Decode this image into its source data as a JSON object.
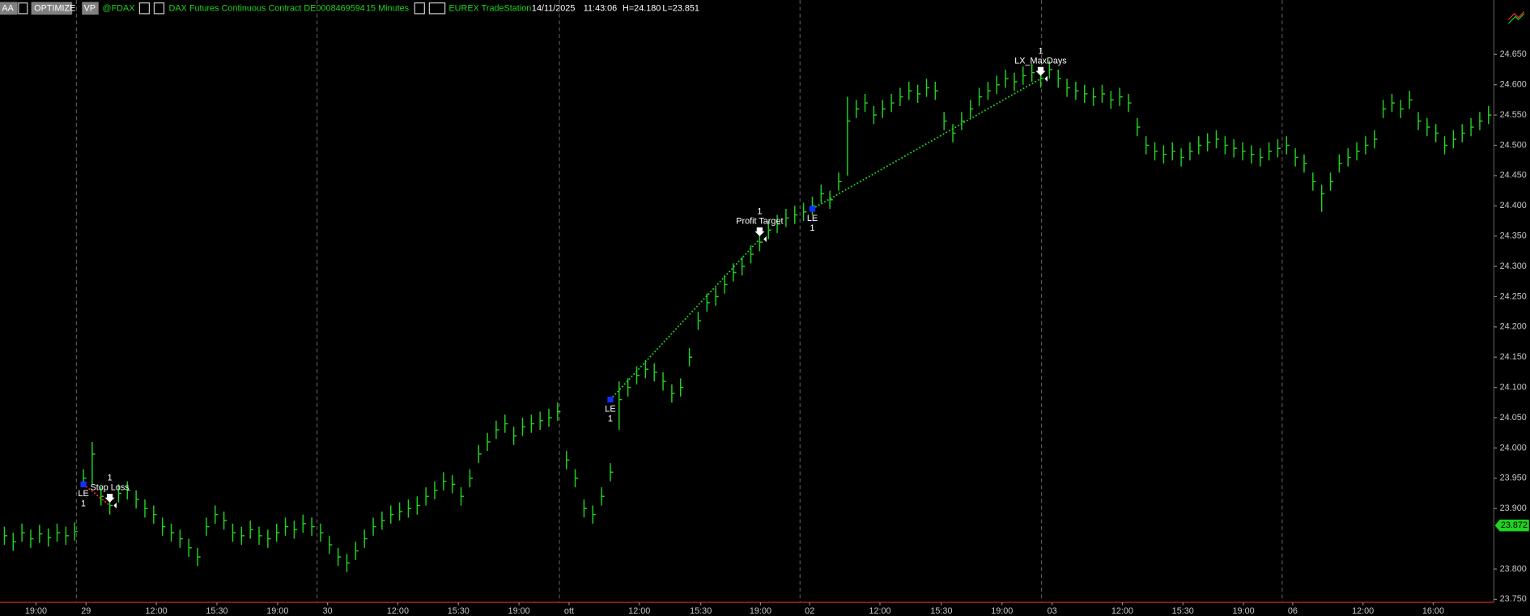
{
  "header": {
    "aa": "AA",
    "optimize": "OPTIMIZE",
    "vp": "VP",
    "symbol": "@FDAX",
    "description": "DAX  Futures Continuous Contract DE0008469594",
    "interval": "15 Minutes",
    "exchange": "EUREX  TradeStation",
    "date": "14/11/2025",
    "time": "11:43:06",
    "high": "H=24.180",
    "low": "L=23.851"
  },
  "chart_data": {
    "type": "ohlc",
    "color": "#1fd31f",
    "close": [
      23855,
      23845,
      23860,
      23850,
      23858,
      23852,
      23860,
      23855,
      23862,
      23950,
      23990,
      23920,
      23905,
      23925,
      23930,
      23915,
      23900,
      23890,
      23870,
      23860,
      23850,
      23835,
      23820,
      23870,
      23890,
      23880,
      23860,
      23855,
      23865,
      23855,
      23850,
      23860,
      23870,
      23865,
      23875,
      23870,
      23860,
      23840,
      23820,
      23810,
      23830,
      23850,
      23870,
      23880,
      23890,
      23895,
      23900,
      23905,
      23920,
      23930,
      23945,
      23940,
      23920,
      23950,
      23990,
      24010,
      24030,
      24040,
      24020,
      24035,
      24040,
      24045,
      24050,
      24060,
      23980,
      23950,
      23900,
      23890,
      23920,
      23960,
      24080,
      24100,
      24120,
      24130,
      24125,
      24110,
      24090,
      24100,
      24150,
      24210,
      24240,
      24250,
      24270,
      24290,
      24300,
      24320,
      24340,
      24360,
      24370,
      24380,
      24385,
      24390,
      24400,
      24420,
      24410,
      24440,
      24540,
      24560,
      24570,
      24550,
      24560,
      24570,
      24580,
      24590,
      24585,
      24595,
      24590,
      24540,
      24520,
      24540,
      24560,
      24580,
      24590,
      24600,
      24610,
      24605,
      24615,
      24620,
      24610,
      24625,
      24610,
      24595,
      24590,
      24585,
      24580,
      24585,
      24575,
      24580,
      24570,
      24530,
      24500,
      24490,
      24485,
      24490,
      24480,
      24490,
      24500,
      24505,
      24510,
      24500,
      24495,
      24490,
      24485,
      24480,
      24490,
      24495,
      24500,
      24480,
      24470,
      24440,
      24420,
      24440,
      24470,
      24480,
      24490,
      24500,
      24510,
      24560,
      24570,
      24560,
      24575,
      24540,
      24530,
      24520,
      24500,
      24510,
      24520,
      24530,
      24540,
      24550
    ],
    "high": [
      23870,
      23860,
      23875,
      23865,
      23873,
      23867,
      23875,
      23870,
      23877,
      23965,
      24010,
      23935,
      23920,
      23940,
      23945,
      23930,
      23915,
      23905,
      23885,
      23875,
      23865,
      23850,
      23835,
      23885,
      23905,
      23895,
      23875,
      23870,
      23880,
      23870,
      23865,
      23875,
      23885,
      23880,
      23890,
      23885,
      23875,
      23855,
      23835,
      23825,
      23845,
      23865,
      23885,
      23895,
      23905,
      23910,
      23915,
      23920,
      23935,
      23945,
      23960,
      23955,
      23935,
      23965,
      24005,
      24025,
      24045,
      24055,
      24035,
      24050,
      24055,
      24060,
      24065,
      24075,
      23995,
      23965,
      23915,
      23905,
      23935,
      23975,
      24110,
      24115,
      24135,
      24145,
      24140,
      24125,
      24105,
      24115,
      24165,
      24225,
      24255,
      24265,
      24285,
      24305,
      24315,
      24335,
      24355,
      24375,
      24385,
      24395,
      24400,
      24405,
      24415,
      24435,
      24425,
      24455,
      24580,
      24575,
      24585,
      24565,
      24575,
      24585,
      24595,
      24605,
      24600,
      24610,
      24605,
      24555,
      24535,
      24555,
      24575,
      24595,
      24605,
      24615,
      24625,
      24620,
      24630,
      24635,
      24625,
      24640,
      24625,
      24610,
      24605,
      24600,
      24595,
      24600,
      24590,
      24595,
      24585,
      24545,
      24515,
      24505,
      24500,
      24505,
      24495,
      24505,
      24515,
      24520,
      24525,
      24515,
      24510,
      24505,
      24500,
      24495,
      24505,
      24510,
      24515,
      24495,
      24485,
      24455,
      24435,
      24455,
      24485,
      24495,
      24505,
      24515,
      24525,
      24575,
      24585,
      24575,
      24590,
      24555,
      24545,
      24535,
      24515,
      24525,
      24535,
      24545,
      24555,
      24565
    ],
    "low": [
      23840,
      23830,
      23845,
      23835,
      23843,
      23837,
      23845,
      23840,
      23847,
      23935,
      23940,
      23905,
      23890,
      23910,
      23915,
      23900,
      23885,
      23875,
      23855,
      23845,
      23835,
      23820,
      23805,
      23855,
      23875,
      23865,
      23845,
      23840,
      23850,
      23840,
      23835,
      23845,
      23855,
      23850,
      23860,
      23855,
      23845,
      23825,
      23805,
      23795,
      23815,
      23835,
      23855,
      23865,
      23875,
      23880,
      23885,
      23890,
      23905,
      23915,
      23930,
      23925,
      23905,
      23935,
      23975,
      23995,
      24015,
      24025,
      24005,
      24020,
      24025,
      24030,
      24035,
      24045,
      23965,
      23935,
      23885,
      23875,
      23905,
      23945,
      24030,
      24085,
      24105,
      24115,
      24110,
      24095,
      24075,
      24085,
      24135,
      24195,
      24225,
      24235,
      24255,
      24275,
      24285,
      24305,
      24325,
      24345,
      24355,
      24365,
      24370,
      24375,
      24385,
      24405,
      24395,
      24425,
      24450,
      24545,
      24555,
      24535,
      24545,
      24555,
      24565,
      24575,
      24570,
      24580,
      24575,
      24525,
      24505,
      24525,
      24545,
      24565,
      24575,
      24585,
      24595,
      24590,
      24600,
      24605,
      24595,
      24610,
      24595,
      24580,
      24575,
      24570,
      24565,
      24570,
      24560,
      24565,
      24555,
      24515,
      24485,
      24475,
      24470,
      24475,
      24465,
      24475,
      24485,
      24490,
      24495,
      24485,
      24480,
      24475,
      24470,
      24465,
      24475,
      24480,
      24485,
      24465,
      24455,
      24425,
      24390,
      24425,
      24455,
      24465,
      24475,
      24485,
      24495,
      24545,
      24555,
      24545,
      24560,
      24525,
      24515,
      24505,
      24485,
      24495,
      24505,
      24515,
      24525,
      24535
    ],
    "xlim": [
      0,
      170
    ],
    "ylim": [
      23745,
      24740
    ],
    "yticks": [
      {
        "value": 23750,
        "label": "23.750"
      },
      {
        "value": 23800,
        "label": "23.800"
      },
      {
        "value": 23900,
        "label": "23.900"
      },
      {
        "value": 23950,
        "label": "23.950"
      },
      {
        "value": 24000,
        "label": "24.000"
      },
      {
        "value": 24050,
        "label": "24.050"
      },
      {
        "value": 24100,
        "label": "24.100"
      },
      {
        "value": 24150,
        "label": "24.150"
      },
      {
        "value": 24200,
        "label": "24.200"
      },
      {
        "value": 24250,
        "label": "24.250"
      },
      {
        "value": 24300,
        "label": "24.300"
      },
      {
        "value": 24350,
        "label": "24.350"
      },
      {
        "value": 24400,
        "label": "24.400"
      },
      {
        "value": 24450,
        "label": "24.450"
      },
      {
        "value": 24500,
        "label": "24.500"
      },
      {
        "value": 24550,
        "label": "24.550"
      },
      {
        "value": 24600,
        "label": "24.600"
      },
      {
        "value": 24650,
        "label": "24.650"
      }
    ],
    "xticks": [
      {
        "value": 4.1,
        "label": "19:00"
      },
      {
        "value": 9.8,
        "label": "29"
      },
      {
        "value": 17.8,
        "label": "12:00"
      },
      {
        "value": 24.7,
        "label": "15:30"
      },
      {
        "value": 31.6,
        "label": "19:00"
      },
      {
        "value": 37.3,
        "label": "30"
      },
      {
        "value": 45.3,
        "label": "12:00"
      },
      {
        "value": 52.2,
        "label": "15:30"
      },
      {
        "value": 59.1,
        "label": "19:00"
      },
      {
        "value": 64.8,
        "label": "ott"
      },
      {
        "value": 72.8,
        "label": "12:00"
      },
      {
        "value": 79.8,
        "label": "15:30"
      },
      {
        "value": 86.6,
        "label": "19:00"
      },
      {
        "value": 92.2,
        "label": "02"
      },
      {
        "value": 100.2,
        "label": "12:00"
      },
      {
        "value": 107.2,
        "label": "15:30"
      },
      {
        "value": 114.1,
        "label": "19:00"
      },
      {
        "value": 119.8,
        "label": "03"
      },
      {
        "value": 127.8,
        "label": "12:00"
      },
      {
        "value": 134.7,
        "label": "15:30"
      },
      {
        "value": 141.6,
        "label": "19:00"
      },
      {
        "value": 147.2,
        "label": "06"
      },
      {
        "value": 155.2,
        "label": "12:00"
      },
      {
        "value": 163.2,
        "label": "16:00"
      }
    ],
    "day_separators": [
      8.7,
      36.1,
      63.7,
      91.1,
      118.6,
      146
    ],
    "last_price": {
      "value": 23872,
      "label": "23.872"
    },
    "trades": [
      {
        "color": "#ff3030",
        "entry": {
          "label": "LE",
          "qty": "1",
          "bar": 9.5,
          "price": 23940
        },
        "exit": {
          "label": "Stop Loss",
          "qty": "1",
          "bar": 12.5,
          "price": 23905
        }
      },
      {
        "color": "#1fd31f",
        "entry": {
          "label": "LE",
          "qty": "1",
          "bar": 69.5,
          "price": 24080
        },
        "exit": {
          "label": "Profit Target",
          "qty": "1",
          "bar": 86.5,
          "price": 24345
        }
      },
      {
        "color": "#1fd31f",
        "entry": {
          "label": "LE",
          "qty": "1",
          "bar": 92.5,
          "price": 24395
        },
        "exit": {
          "label": "LX_MaxDays",
          "qty": "1",
          "bar": 118.5,
          "price": 24610
        }
      }
    ]
  }
}
